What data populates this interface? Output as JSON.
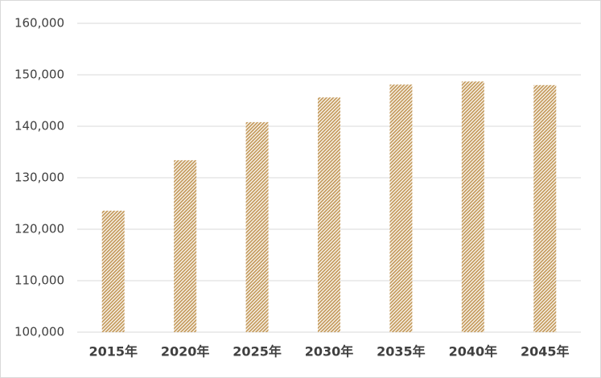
{
  "chart_data": {
    "type": "bar",
    "categories": [
      "2015年",
      "2020年",
      "2025年",
      "2030年",
      "2035年",
      "2040年",
      "2045年"
    ],
    "values": [
      123600,
      133400,
      140800,
      145600,
      148100,
      148700,
      148000
    ],
    "color": "#c49a5c",
    "ylim": [
      100000,
      160000
    ],
    "yticks": [
      {
        "value": 100000,
        "label": "100,000"
      },
      {
        "value": 110000,
        "label": "110,000"
      },
      {
        "value": 120000,
        "label": "120,000"
      },
      {
        "value": 130000,
        "label": "130,000"
      },
      {
        "value": 140000,
        "label": "140,000"
      },
      {
        "value": 150000,
        "label": "150,000"
      },
      {
        "value": 160000,
        "label": "160,000"
      }
    ],
    "grid": true
  }
}
